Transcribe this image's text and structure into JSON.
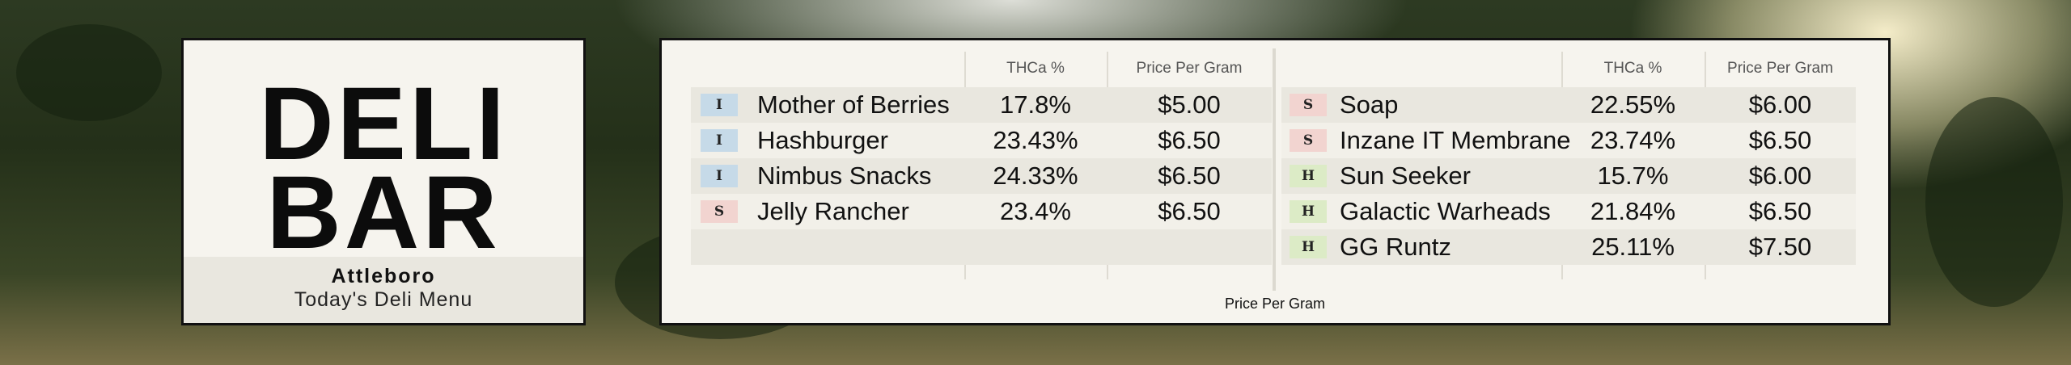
{
  "header": {
    "title_line1": "DELI",
    "title_line2": "BAR",
    "location": "Attleboro",
    "subtitle": "Today's Deli Menu"
  },
  "menu": {
    "tables": [
      {
        "columns": [
          "THCa %",
          "Price Per Gram"
        ],
        "rows": [
          {
            "type": "I",
            "name": "Mother of Berries",
            "thca": "17.8%",
            "price": "$5.00"
          },
          {
            "type": "I",
            "name": "Hashburger",
            "thca": "23.43%",
            "price": "$6.50"
          },
          {
            "type": "I",
            "name": "Nimbus Snacks",
            "thca": "24.33%",
            "price": "$6.50"
          },
          {
            "type": "S",
            "name": "Jelly Rancher",
            "thca": "23.4%",
            "price": "$6.50"
          }
        ]
      },
      {
        "columns": [
          "THCa %",
          "Price Per Gram"
        ],
        "rows": [
          {
            "type": "S",
            "name": "Soap",
            "thca": "22.55%",
            "price": "$6.00"
          },
          {
            "type": "S",
            "name": "Inzane IT Membrane",
            "thca": "23.74%",
            "price": "$6.50"
          },
          {
            "type": "H",
            "name": "Sun Seeker",
            "thca": "15.7%",
            "price": "$6.00"
          },
          {
            "type": "H",
            "name": "Galactic Warheads",
            "thca": "21.84%",
            "price": "$6.50"
          },
          {
            "type": "H",
            "name": "GG Runtz",
            "thca": "25.11%",
            "price": "$7.50"
          }
        ]
      }
    ],
    "footer": "Price Per Gram"
  }
}
